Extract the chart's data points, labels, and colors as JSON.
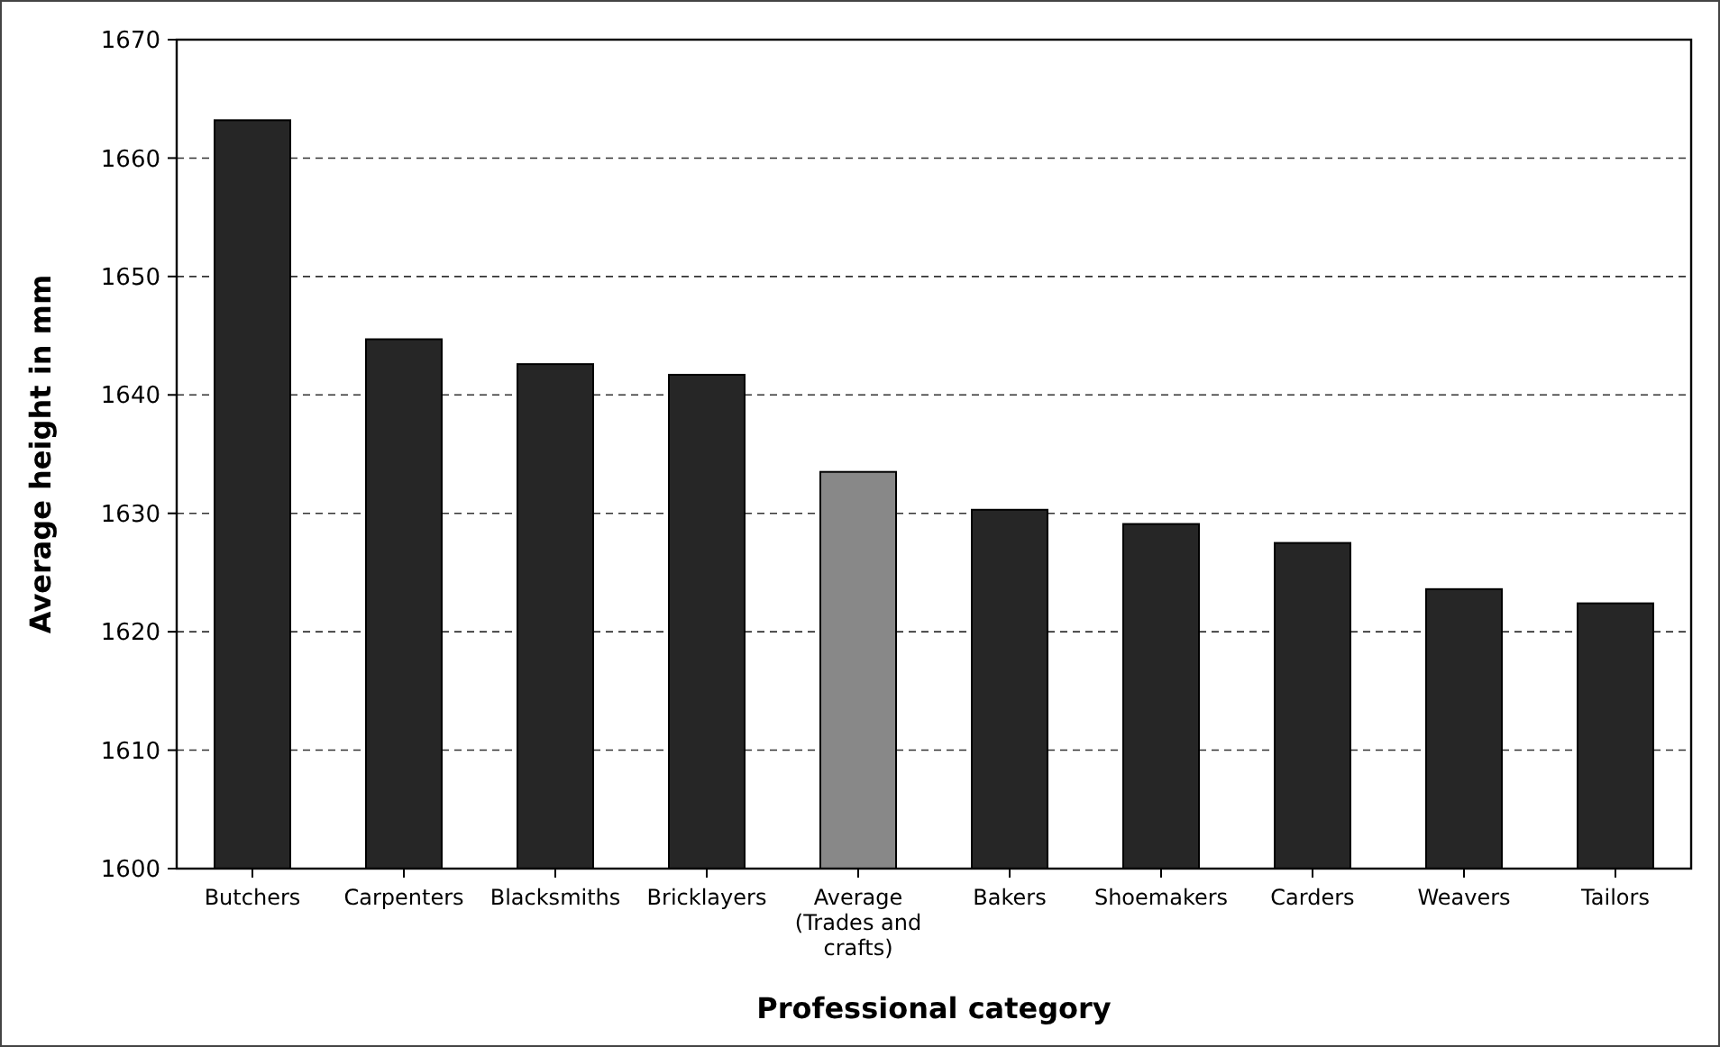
{
  "chart_data": {
    "type": "bar",
    "xlabel": "Professional category",
    "ylabel": "Average height in mm",
    "categories": [
      "Butchers",
      "Carpenters",
      "Blacksmiths",
      "Bricklayers",
      "Average (Trades and crafts)",
      "Bakers",
      "Shoemakers",
      "Carders",
      "Weavers",
      "Tailors"
    ],
    "values": [
      1663.2,
      1644.7,
      1642.6,
      1641.7,
      1633.5,
      1630.3,
      1629.1,
      1627.5,
      1623.6,
      1622.4
    ],
    "colors": [
      "#262626",
      "#262626",
      "#262626",
      "#262626",
      "#888888",
      "#262626",
      "#262626",
      "#262626",
      "#262626",
      "#262626"
    ],
    "ylim": [
      1600,
      1670
    ],
    "yticks": [
      1600,
      1610,
      1620,
      1630,
      1640,
      1650,
      1660,
      1670
    ],
    "grid": "y"
  }
}
